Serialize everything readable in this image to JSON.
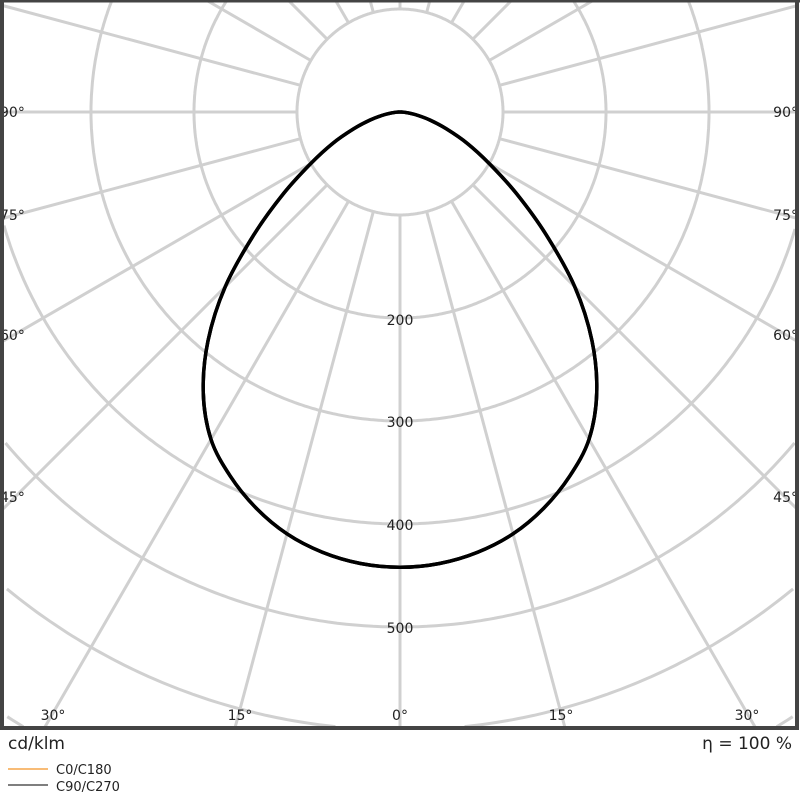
{
  "chart_data": {
    "type": "polar-line",
    "unit_label": "cd/klm",
    "efficiency_label": "η = 100 %",
    "radial_ticks": [
      100,
      200,
      300,
      400,
      500,
      600,
      700
    ],
    "radial_tick_labels": [
      "200",
      "300",
      "400",
      "500"
    ],
    "angle_labels_left": [
      "90°",
      "75°",
      "60°",
      "45°"
    ],
    "angle_labels_right": [
      "90°",
      "75°",
      "60°",
      "45°"
    ],
    "angle_labels_bottom": [
      "30°",
      "15°",
      "0°",
      "15°",
      "30°"
    ],
    "angles_deg": [
      0,
      5,
      10,
      15,
      20,
      25,
      30,
      35,
      40,
      45,
      50,
      55,
      60,
      65,
      70,
      75,
      80,
      85,
      90
    ],
    "series": [
      {
        "name": "C0/C180",
        "color": "#f5a54a",
        "values": [
          442,
          440,
          434,
          424,
          409,
          390,
          367,
          333,
          290,
          240,
          185,
          138,
          100,
          72,
          48,
          30,
          16,
          6,
          0
        ]
      },
      {
        "name": "C90/C270",
        "color": "#555555",
        "values": [
          442,
          440,
          434,
          424,
          409,
          390,
          367,
          333,
          290,
          240,
          185,
          138,
          100,
          72,
          48,
          30,
          16,
          6,
          0
        ]
      }
    ],
    "curve_color": "#000000",
    "grid": true,
    "legend_position": "bottom-left"
  }
}
